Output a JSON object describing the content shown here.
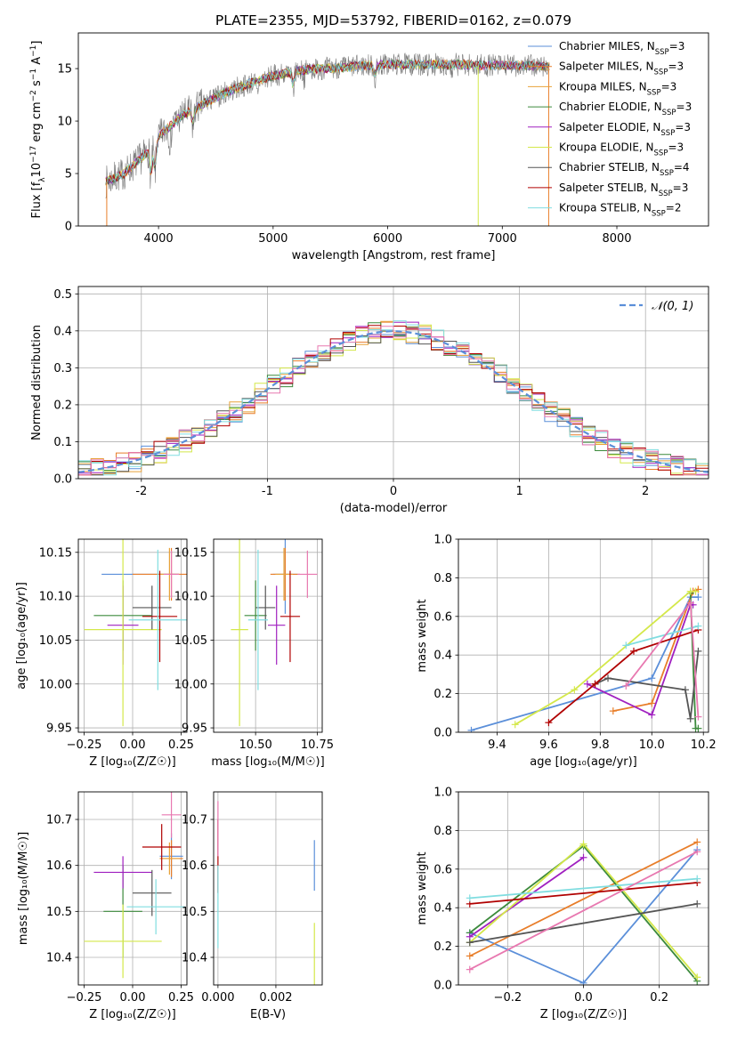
{
  "colors": {
    "chabrier_miles": "#5b8fd9",
    "salpeter_miles": "#e87e2a",
    "kroupa_miles": "#e8a23a",
    "chabrier_elodie": "#3c8a3c",
    "salpeter_elodie": "#a020c0",
    "kroupa_elodie": "#d4e84a",
    "chabrier_stelib": "#555555",
    "salpeter_stelib": "#b00000",
    "kroupa_stelib": "#80dde0",
    "pink": "#e878b0",
    "data_gray": "#7a7a7a",
    "normal_dashed": "#5b8fd9"
  },
  "chart_data": [
    {
      "id": "spectrum",
      "type": "line",
      "title": "PLATE=2355, MJD=53792, FIBERID=0162, z=0.079",
      "xlabel": "wavelength [Angstrom, rest frame]",
      "ylabel_parts": [
        "Flux [f",
        "λ",
        "10",
        "−17",
        " erg cm",
        "−2",
        " s",
        "−1",
        " A",
        "−1",
        "]"
      ],
      "xlim": [
        3300,
        8800
      ],
      "ylim": [
        0,
        18.4
      ],
      "xticks": [
        4000,
        5000,
        6000,
        7000,
        8000
      ],
      "yticks": [
        0,
        5,
        10,
        15
      ],
      "continuum_x": [
        3500,
        3700,
        3900,
        4000,
        4200,
        4400,
        4600,
        4800,
        5000,
        5200,
        5400,
        5600,
        5800,
        6000,
        6200,
        6400,
        6600,
        6800,
        7000,
        7200,
        7400,
        7600,
        7800,
        8000,
        8200,
        8400
      ],
      "continuum_y": [
        4.0,
        5.0,
        7.0,
        8.5,
        10.5,
        11.7,
        12.8,
        13.6,
        14.3,
        14.8,
        15.0,
        15.1,
        15.3,
        15.4,
        15.4,
        15.4,
        15.4,
        15.3,
        15.3,
        15.3,
        15.2,
        15.2,
        15.1,
        15.0,
        14.9,
        14.7
      ],
      "legend": [
        {
          "label": "Chabrier MILES, N",
          "sub": "SSP",
          "tail": "=3",
          "color_key": "chabrier_miles"
        },
        {
          "label": "Salpeter MILES, N",
          "sub": "SSP",
          "tail": "=3",
          "color_key": "salpeter_miles"
        },
        {
          "label": "Kroupa MILES, N",
          "sub": "SSP",
          "tail": "=3",
          "color_key": "kroupa_miles"
        },
        {
          "label": "Chabrier ELODIE, N",
          "sub": "SSP",
          "tail": "=3",
          "color_key": "chabrier_elodie"
        },
        {
          "label": "Salpeter ELODIE, N",
          "sub": "SSP",
          "tail": "=3",
          "color_key": "salpeter_elodie"
        },
        {
          "label": "Kroupa ELODIE, N",
          "sub": "SSP",
          "tail": "=3",
          "color_key": "kroupa_elodie"
        },
        {
          "label": "Chabrier STELIB, N",
          "sub": "SSP",
          "tail": "=4",
          "color_key": "chabrier_stelib"
        },
        {
          "label": "Salpeter STELIB, N",
          "sub": "SSP",
          "tail": "=3",
          "color_key": "salpeter_stelib"
        },
        {
          "label": "Kroupa STELIB, N",
          "sub": "SSP",
          "tail": "=2",
          "color_key": "kroupa_stelib"
        }
      ]
    },
    {
      "id": "residuals",
      "type": "line",
      "xlabel": "(data-model)/error",
      "ylabel": "Normed distribution",
      "xlim": [
        -2.5,
        2.5
      ],
      "ylim": [
        0,
        0.52
      ],
      "xticks": [
        -2,
        -1,
        0,
        1,
        2
      ],
      "yticks": [
        0.0,
        0.1,
        0.2,
        0.3,
        0.4,
        0.5
      ],
      "ytick_labels": [
        "0.0",
        "0.1",
        "0.2",
        "0.3",
        "0.4",
        "0.5"
      ],
      "grid": true,
      "legend_label": "𝒩(0, 1)",
      "bins": 50
    },
    {
      "id": "age_vs_Z",
      "type": "scatter",
      "xlabel": "Z [log₁₀(Z/Z☉)]",
      "ylabel": "age  [log₁₀(age/yr)]",
      "xlim": [
        -0.28,
        0.28
      ],
      "ylim": [
        9.945,
        10.165
      ],
      "xticks": [
        -0.25,
        0.0,
        0.25
      ],
      "xtick_labels": [
        "−0.25",
        "0.00",
        "0.25"
      ],
      "yticks": [
        9.95,
        10.0,
        10.05,
        10.1,
        10.15
      ],
      "ytick_labels": [
        "9.95",
        "10.00",
        "10.05",
        "10.10",
        "10.15"
      ],
      "points": [
        {
          "x": 0.04,
          "y": 10.125,
          "xerr": 0.2,
          "yerr": 0.0,
          "color_key": "chabrier_miles"
        },
        {
          "x": 0.2,
          "y": 10.125,
          "xerr": 0.2,
          "yerr": 0.03,
          "color_key": "salpeter_miles"
        },
        {
          "x": 0.19,
          "y": 10.125,
          "xerr": 0.05,
          "yerr": 0.03,
          "color_key": "kroupa_miles"
        },
        {
          "x": -0.05,
          "y": 10.078,
          "xerr": 0.15,
          "yerr": 0.04,
          "color_key": "chabrier_elodie"
        },
        {
          "x": -0.05,
          "y": 10.067,
          "xerr": 0.08,
          "yerr": 0.045,
          "color_key": "salpeter_elodie"
        },
        {
          "x": -0.05,
          "y": 10.062,
          "xerr": 0.2,
          "yerr": 0.11,
          "color_key": "kroupa_elodie"
        },
        {
          "x": 0.1,
          "y": 10.087,
          "xerr": 0.1,
          "yerr": 0.025,
          "color_key": "chabrier_stelib"
        },
        {
          "x": 0.14,
          "y": 10.077,
          "xerr": 0.09,
          "yerr": 0.052,
          "color_key": "salpeter_stelib"
        },
        {
          "x": 0.13,
          "y": 10.073,
          "xerr": 0.15,
          "yerr": 0.08,
          "color_key": "kroupa_stelib"
        },
        {
          "x": 0.2,
          "y": 10.125,
          "xerr": 0.04,
          "yerr": 0.027,
          "color_key": "pink"
        }
      ]
    },
    {
      "id": "age_vs_mass",
      "type": "scatter",
      "xlabel": "mass [log₁₀(M/M☉)]",
      "ylabel": "",
      "xlim": [
        10.33,
        10.77
      ],
      "ylim": [
        9.945,
        10.165
      ],
      "xticks": [
        10.5,
        10.75
      ],
      "xtick_labels": [
        "10.50",
        "10.75"
      ],
      "yticks": [
        9.95,
        10.0,
        10.05,
        10.1,
        10.15
      ],
      "ytick_labels": [
        "9.95",
        "10.00",
        "10.05",
        "10.10",
        "10.15"
      ],
      "points": [
        {
          "x": 10.62,
          "y": 10.125,
          "xerr": 0.05,
          "yerr": 0.045,
          "color_key": "chabrier_miles"
        },
        {
          "x": 10.62,
          "y": 10.125,
          "xerr": 0.06,
          "yerr": 0.03,
          "color_key": "salpeter_miles"
        },
        {
          "x": 10.615,
          "y": 10.125,
          "xerr": 0.035,
          "yerr": 0.03,
          "color_key": "kroupa_miles"
        },
        {
          "x": 10.5,
          "y": 10.078,
          "xerr": 0.045,
          "yerr": 0.04,
          "color_key": "chabrier_elodie"
        },
        {
          "x": 10.585,
          "y": 10.067,
          "xerr": 0.035,
          "yerr": 0.045,
          "color_key": "salpeter_elodie"
        },
        {
          "x": 10.435,
          "y": 10.062,
          "xerr": 0.035,
          "yerr": 0.11,
          "color_key": "kroupa_elodie"
        },
        {
          "x": 10.54,
          "y": 10.087,
          "xerr": 0.04,
          "yerr": 0.025,
          "color_key": "chabrier_stelib"
        },
        {
          "x": 10.64,
          "y": 10.077,
          "xerr": 0.04,
          "yerr": 0.052,
          "color_key": "salpeter_stelib"
        },
        {
          "x": 10.51,
          "y": 10.073,
          "xerr": 0.04,
          "yerr": 0.08,
          "color_key": "kroupa_stelib"
        },
        {
          "x": 10.71,
          "y": 10.125,
          "xerr": 0.04,
          "yerr": 0.027,
          "color_key": "pink"
        }
      ]
    },
    {
      "id": "weight_vs_age",
      "type": "line",
      "xlabel": "age  [log₁₀(age/yr)]",
      "ylabel": "mass weight",
      "xlim": [
        9.25,
        10.22
      ],
      "ylim": [
        0,
        1.0
      ],
      "xticks": [
        9.4,
        9.6,
        9.8,
        10.0,
        10.2
      ],
      "xtick_labels": [
        "9.4",
        "9.6",
        "9.8",
        "10.0",
        "10.2"
      ],
      "yticks": [
        0.0,
        0.2,
        0.4,
        0.6,
        0.8,
        1.0
      ],
      "ytick_labels": [
        "0.0",
        "0.2",
        "0.4",
        "0.6",
        "0.8",
        "1.0"
      ],
      "grid": true,
      "series": [
        {
          "color_key": "chabrier_miles",
          "x": [
            9.3,
            10.0,
            10.15,
            10.18
          ],
          "y": [
            0.01,
            0.28,
            0.7,
            0.7
          ]
        },
        {
          "color_key": "salpeter_miles",
          "x": [
            9.85,
            10.0,
            10.16,
            10.18
          ],
          "y": [
            0.11,
            0.15,
            0.73,
            0.74
          ]
        },
        {
          "color_key": "chabrier_elodie",
          "x": [
            10.15,
            10.17,
            10.18
          ],
          "y": [
            0.72,
            0.02,
            0.02
          ]
        },
        {
          "color_key": "salpeter_elodie",
          "x": [
            9.75,
            10.0,
            10.15,
            10.16
          ],
          "y": [
            0.25,
            0.09,
            0.66,
            0.66
          ]
        },
        {
          "color_key": "kroupa_elodie",
          "x": [
            9.47,
            9.7,
            10.15,
            10.17
          ],
          "y": [
            0.04,
            0.22,
            0.73,
            0.73
          ]
        },
        {
          "color_key": "chabrier_stelib",
          "x": [
            9.78,
            9.83,
            10.13,
            10.15,
            10.18
          ],
          "y": [
            0.25,
            0.28,
            0.22,
            0.07,
            0.42
          ]
        },
        {
          "color_key": "salpeter_stelib",
          "x": [
            9.6,
            9.78,
            9.93,
            10.18
          ],
          "y": [
            0.05,
            0.25,
            0.42,
            0.53
          ]
        },
        {
          "color_key": "kroupa_stelib",
          "x": [
            9.9,
            10.18
          ],
          "y": [
            0.45,
            0.55
          ]
        },
        {
          "color_key": "pink",
          "x": [
            9.9,
            10.15,
            10.18
          ],
          "y": [
            0.24,
            0.67,
            0.08
          ]
        }
      ]
    },
    {
      "id": "mass_vs_Z",
      "type": "scatter",
      "xlabel": "Z [log₁₀(Z/Z☉)]",
      "ylabel": "mass [log₁₀(M/M☉)]",
      "xlim": [
        -0.28,
        0.28
      ],
      "ylim": [
        10.34,
        10.76
      ],
      "xticks": [
        -0.25,
        0.0,
        0.25
      ],
      "xtick_labels": [
        "−0.25",
        "0.00",
        "0.25"
      ],
      "yticks": [
        10.4,
        10.5,
        10.6,
        10.7
      ],
      "ytick_labels": [
        "10.4",
        "10.5",
        "10.6",
        "10.7"
      ],
      "points": [
        {
          "x": 0.2,
          "y": 10.62,
          "xerr": 0.06,
          "yerr": 0.05,
          "color_key": "chabrier_miles"
        },
        {
          "x": 0.2,
          "y": 10.615,
          "xerr": 0.06,
          "yerr": 0.04,
          "color_key": "salpeter_miles"
        },
        {
          "x": 0.19,
          "y": 10.615,
          "xerr": 0.05,
          "yerr": 0.035,
          "color_key": "kroupa_miles"
        },
        {
          "x": -0.05,
          "y": 10.5,
          "xerr": 0.1,
          "yerr": 0.1,
          "color_key": "chabrier_elodie"
        },
        {
          "x": -0.05,
          "y": 10.585,
          "xerr": 0.15,
          "yerr": 0.035,
          "color_key": "salpeter_elodie"
        },
        {
          "x": -0.05,
          "y": 10.435,
          "xerr": 0.2,
          "yerr": 0.08,
          "color_key": "kroupa_elodie"
        },
        {
          "x": 0.1,
          "y": 10.54,
          "xerr": 0.1,
          "yerr": 0.05,
          "color_key": "chabrier_stelib"
        },
        {
          "x": 0.15,
          "y": 10.64,
          "xerr": 0.1,
          "yerr": 0.05,
          "color_key": "salpeter_stelib"
        },
        {
          "x": 0.12,
          "y": 10.51,
          "xerr": 0.15,
          "yerr": 0.06,
          "color_key": "kroupa_stelib"
        },
        {
          "x": 0.2,
          "y": 10.71,
          "xerr": 0.05,
          "yerr": 0.05,
          "color_key": "pink"
        }
      ]
    },
    {
      "id": "mass_vs_ebv",
      "type": "scatter",
      "xlabel": "E(B-V)",
      "ylabel": "",
      "xlim": [
        -0.00015,
        0.0036
      ],
      "ylim": [
        10.34,
        10.76
      ],
      "xticks": [
        0.0,
        0.002
      ],
      "xtick_labels": [
        "0.000",
        "0.002"
      ],
      "yticks": [
        10.4,
        10.5,
        10.6,
        10.7
      ],
      "ytick_labels": [
        "10.4",
        "10.5",
        "10.6",
        "10.7"
      ],
      "points": [
        {
          "x": 0.00333,
          "y": 10.6,
          "xerr": 0,
          "yerr": 0.055,
          "color_key": "chabrier_miles"
        },
        {
          "x": 0.0,
          "y": 10.62,
          "xerr": 0,
          "yerr": 0.08,
          "color_key": "salpeter_stelib"
        },
        {
          "x": 0.0,
          "y": 10.51,
          "xerr": 0,
          "yerr": 0.09,
          "color_key": "kroupa_stelib"
        },
        {
          "x": 0.00333,
          "y": 10.4,
          "xerr": 0,
          "yerr": 0.075,
          "color_key": "kroupa_elodie"
        },
        {
          "x": 0.0,
          "y": 10.68,
          "xerr": 0,
          "yerr": 0.06,
          "color_key": "pink"
        }
      ]
    },
    {
      "id": "weight_vs_Z",
      "type": "line",
      "xlabel": "Z [log₁₀(Z/Z☉)]",
      "ylabel": "mass weight",
      "xlim": [
        -0.33,
        0.33
      ],
      "ylim": [
        0,
        1.0
      ],
      "xticks": [
        -0.2,
        0.0,
        0.2
      ],
      "xtick_labels": [
        "−0.2",
        "0.0",
        "0.2"
      ],
      "yticks": [
        0.0,
        0.2,
        0.4,
        0.6,
        0.8,
        1.0
      ],
      "ytick_labels": [
        "0.0",
        "0.2",
        "0.4",
        "0.6",
        "0.8",
        "1.0"
      ],
      "grid": true,
      "series": [
        {
          "color_key": "chabrier_miles",
          "x": [
            -0.3,
            0.0,
            0.3
          ],
          "y": [
            0.27,
            0.01,
            0.7
          ]
        },
        {
          "color_key": "salpeter_miles",
          "x": [
            -0.3,
            0.3
          ],
          "y": [
            0.15,
            0.74
          ]
        },
        {
          "color_key": "chabrier_elodie",
          "x": [
            -0.3,
            0.0,
            0.3
          ],
          "y": [
            0.27,
            0.72,
            0.02
          ]
        },
        {
          "color_key": "salpeter_elodie",
          "x": [
            -0.3,
            0.0
          ],
          "y": [
            0.25,
            0.66
          ]
        },
        {
          "color_key": "kroupa_elodie",
          "x": [
            -0.3,
            0.0,
            0.3
          ],
          "y": [
            0.22,
            0.73,
            0.04
          ]
        },
        {
          "color_key": "chabrier_stelib",
          "x": [
            -0.3,
            0.3
          ],
          "y": [
            0.22,
            0.42
          ]
        },
        {
          "color_key": "salpeter_stelib",
          "x": [
            -0.3,
            0.3
          ],
          "y": [
            0.42,
            0.53
          ]
        },
        {
          "color_key": "kroupa_stelib",
          "x": [
            -0.3,
            0.3
          ],
          "y": [
            0.45,
            0.55
          ]
        },
        {
          "color_key": "pink",
          "x": [
            -0.3,
            0.3
          ],
          "y": [
            0.08,
            0.69
          ]
        }
      ]
    }
  ]
}
